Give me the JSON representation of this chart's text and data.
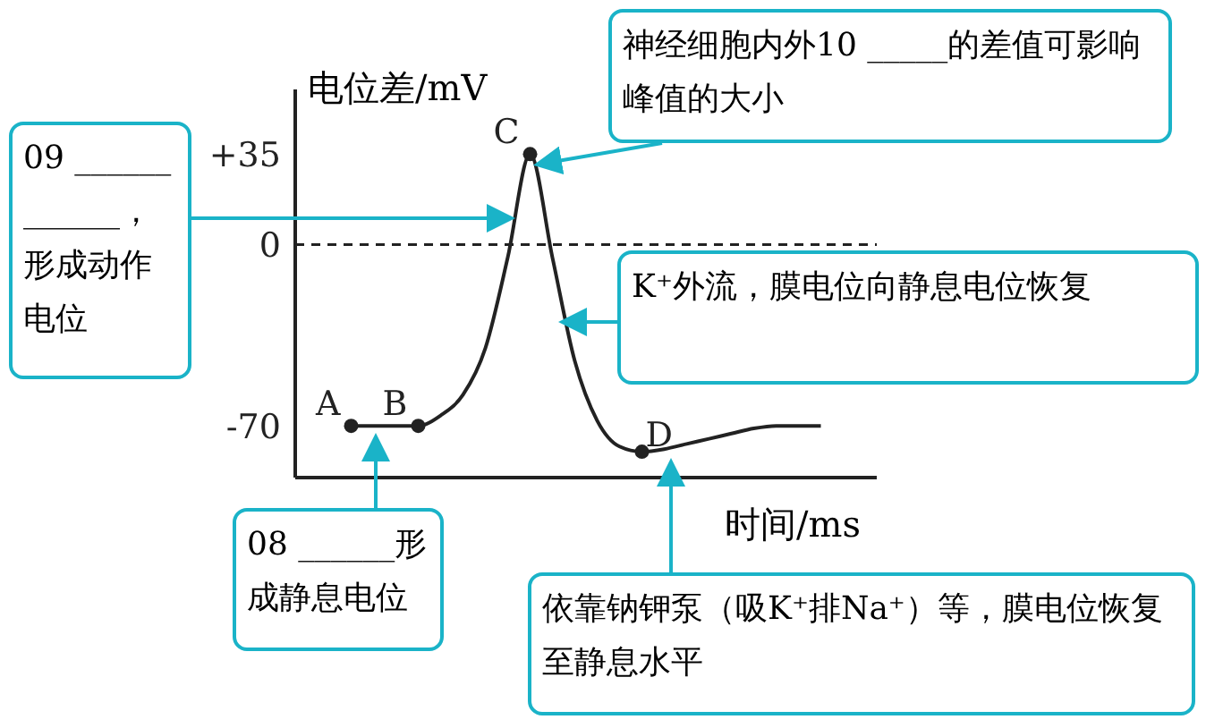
{
  "chart_data": {
    "type": "line",
    "ylabel": "电位差/mV",
    "xlabel": "时间/ms",
    "categories": [
      null,
      null,
      null,
      null,
      null,
      null,
      null,
      null,
      null,
      null,
      null,
      null,
      null,
      null,
      null,
      null,
      null,
      null,
      null,
      null,
      null,
      null,
      null,
      null,
      null,
      null
    ],
    "series": [
      {
        "color": "#222222",
        "values": [
          null,
          null,
          -70,
          -70,
          -70,
          -70,
          -66,
          -58,
          -40,
          -5,
          35,
          -5,
          -45,
          -68,
          -78,
          -80,
          -79,
          -77,
          -75,
          -73,
          -71,
          -70,
          -70,
          -70,
          null,
          null
        ],
        "value_labels": [
          null,
          null,
          "A",
          null,
          null,
          "B",
          null,
          null,
          null,
          null,
          "C",
          null,
          null,
          null,
          null,
          "D",
          null,
          null,
          null,
          null,
          null,
          null,
          null,
          null,
          null,
          null
        ]
      }
    ],
    "ylim": [
      -90,
      60
    ],
    "yticks": [
      {
        "value": 35,
        "label": "+35"
      },
      0,
      -70
    ],
    "tick_labels": "y",
    "grid": false,
    "legend": false,
    "ref_lines": [
      {
        "axis": "y",
        "value": 0,
        "line_style": "dashed",
        "color": "#222222"
      }
    ],
    "annotations": [
      "09 ______ ______，形成动作电位",
      "神经细胞内外10 _____的差值可影响峰值的大小",
      "K⁺外流，膜电位向静息电位恢复",
      "08 ______形成静息电位",
      "依靠钠钾泵（吸K⁺排Na⁺）等，膜电位恢复至静息水平"
    ]
  }
}
